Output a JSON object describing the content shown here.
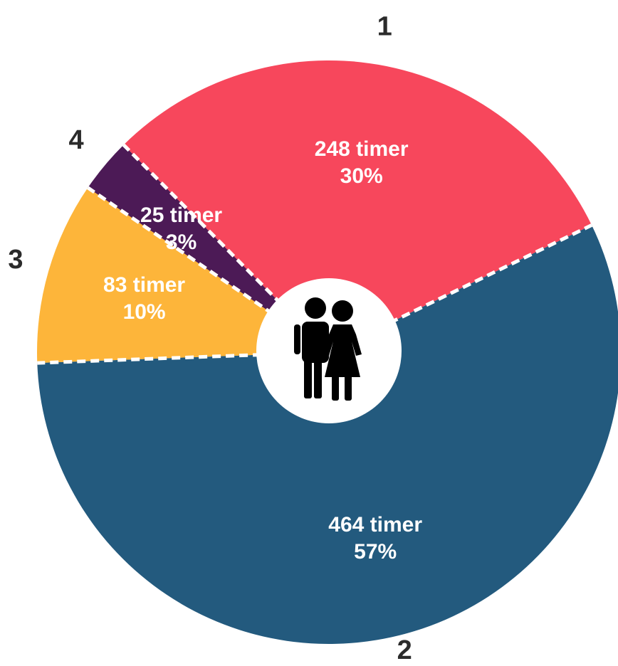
{
  "chart_data": {
    "type": "pie",
    "categories": [
      "1",
      "2",
      "3",
      "4"
    ],
    "values": [
      248,
      464,
      83,
      25
    ],
    "value_labels": [
      "248 timer",
      "464 timer",
      "83 timer",
      "25 timer"
    ],
    "percent_labels": [
      "30%",
      "57%",
      "10%",
      "3%"
    ],
    "colors": [
      "#f7475c",
      "#235a7e",
      "#fdb53a",
      "#4c1a56"
    ]
  }
}
